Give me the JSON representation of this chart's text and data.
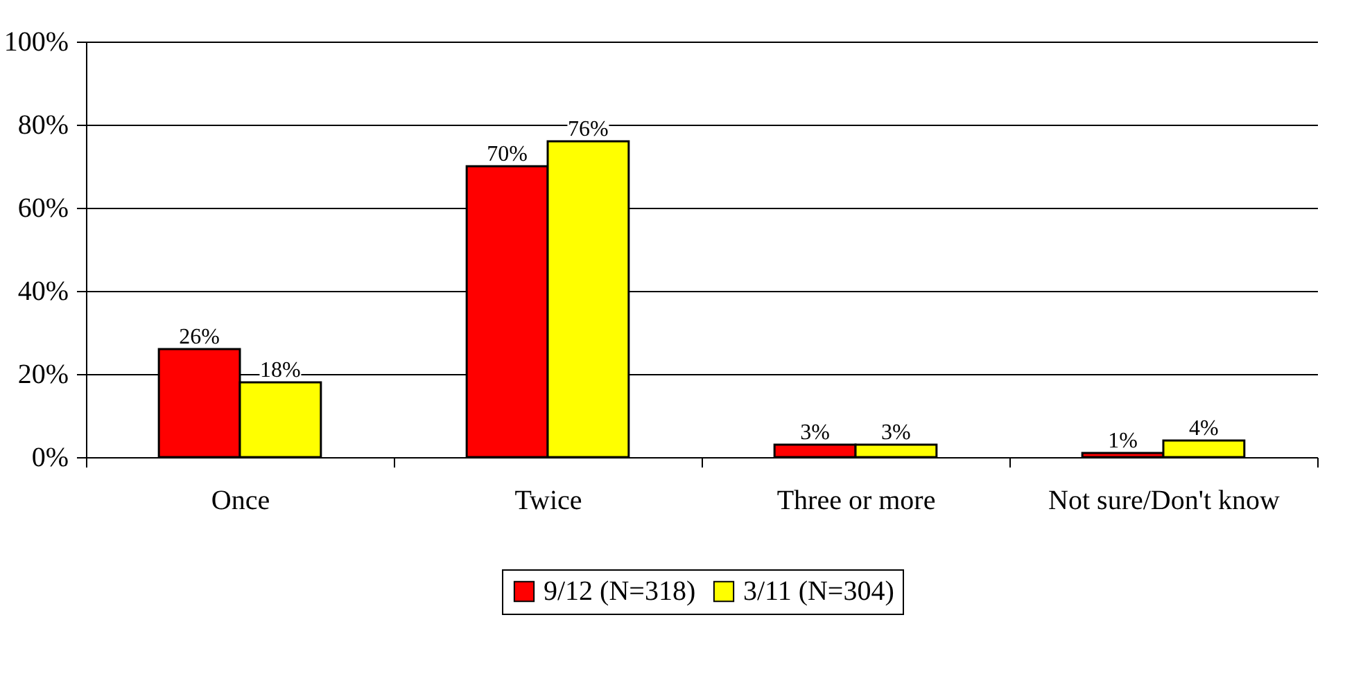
{
  "chart_data": {
    "type": "bar",
    "categories": [
      "Once",
      "Twice",
      "Three or more",
      "Not sure/Don't know"
    ],
    "series": [
      {
        "name": "9/12 (N=318)",
        "color": "#ff0000",
        "values": [
          26,
          70,
          3,
          1
        ],
        "value_labels": [
          "26%",
          "70%",
          "3%",
          "1%"
        ]
      },
      {
        "name": "3/11 (N=304)",
        "color": "#ffff00",
        "values": [
          18,
          76,
          3,
          4
        ],
        "value_labels": [
          "18%",
          "76%",
          "3%",
          "4%"
        ]
      }
    ],
    "ylim": [
      0,
      100
    ],
    "yticks": [
      {
        "value": 0,
        "label": "0%"
      },
      {
        "value": 20,
        "label": "20%"
      },
      {
        "value": 40,
        "label": "40%"
      },
      {
        "value": 60,
        "label": "60%"
      },
      {
        "value": 80,
        "label": "80%"
      },
      {
        "value": 100,
        "label": "100%"
      }
    ],
    "grid": "y",
    "legend": "bottom"
  }
}
